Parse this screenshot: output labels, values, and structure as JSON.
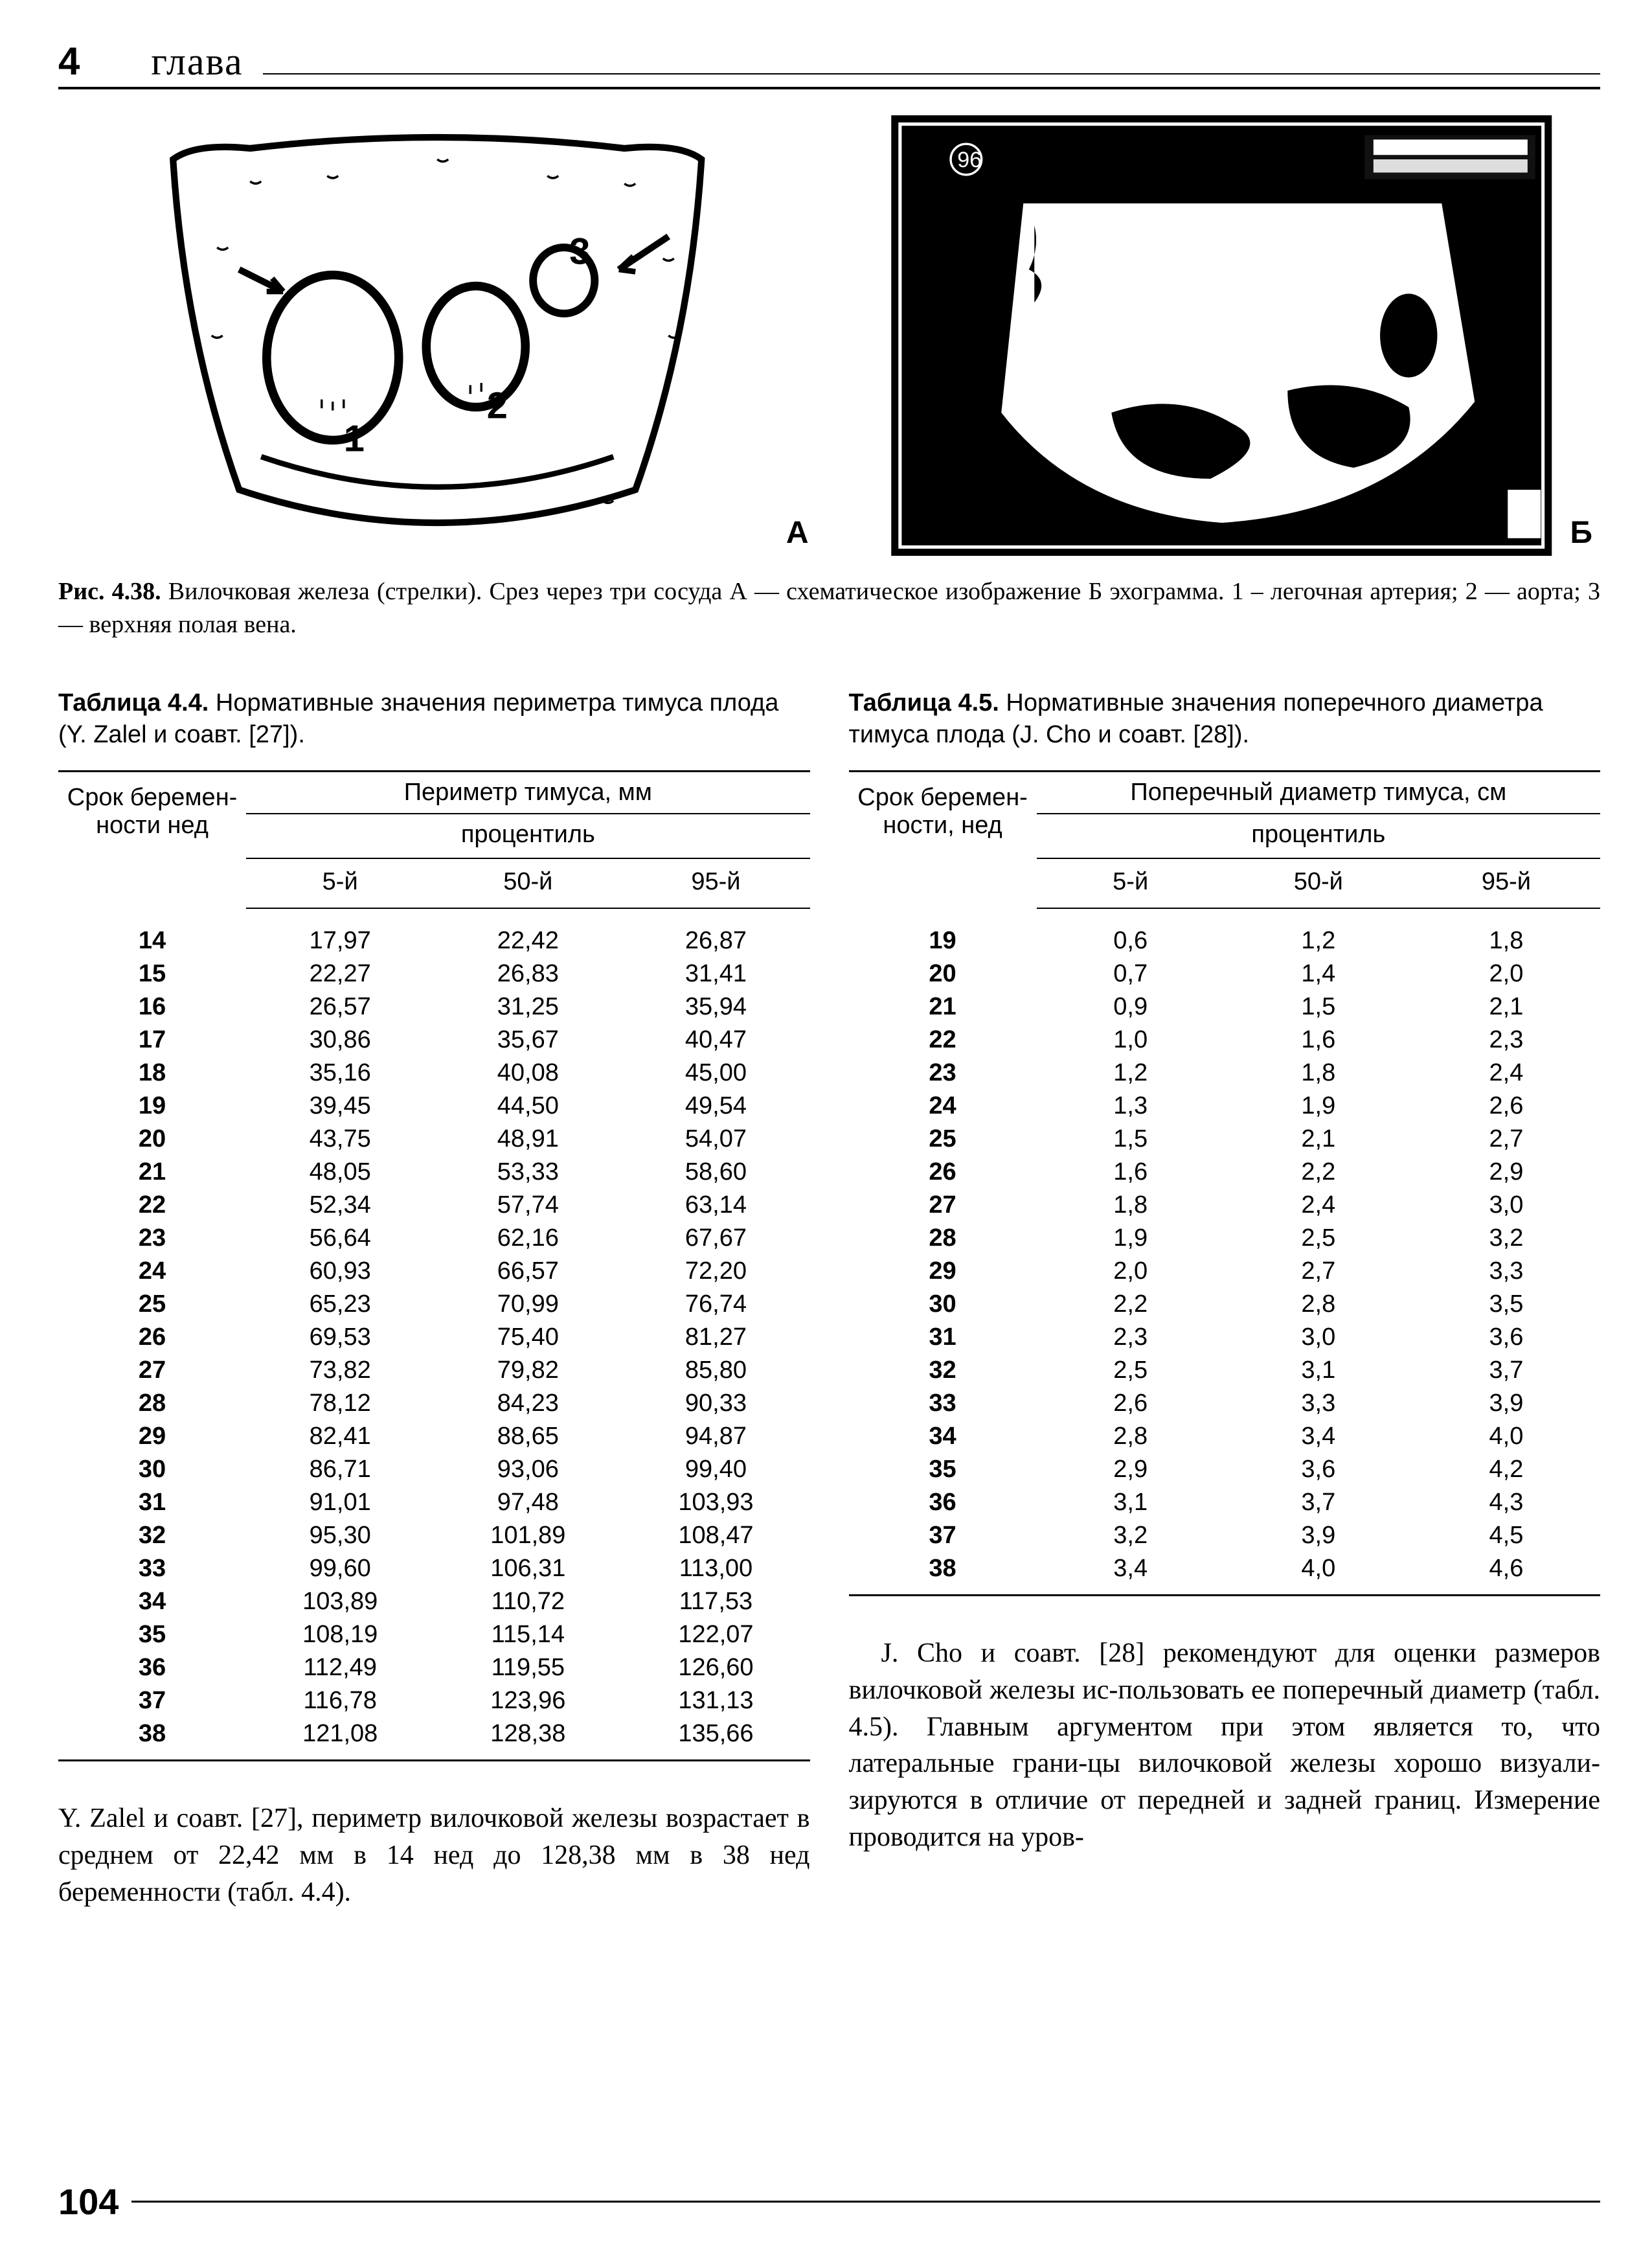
{
  "header": {
    "page_top": "4",
    "chapter": "глава"
  },
  "figure": {
    "label_a": "А",
    "label_b": "Б",
    "caption_bold": "Рис. 4.38.",
    "caption_text": " Вилочковая железа (стрелки). Срез через три сосуда  А — схематическое изображение  Б   эхограмма. 1 – легочная артерия; 2 — аорта; 3 — верхняя полая вена."
  },
  "table44": {
    "caption_bold": "Таблица 4.4.",
    "caption_text": " Нормативные значения периметра тимуса плода (Y. Zalel и соавт. [27]).",
    "rowhead": "Срок беремен-ности нед",
    "spanhead": "Периметр тимуса, мм",
    "subhead": "процентиль",
    "cols": [
      "5-й",
      "50-й",
      "95-й"
    ],
    "rows": [
      [
        "14",
        "17,97",
        "22,42",
        "26,87"
      ],
      [
        "15",
        "22,27",
        "26,83",
        "31,41"
      ],
      [
        "16",
        "26,57",
        "31,25",
        "35,94"
      ],
      [
        "17",
        "30,86",
        "35,67",
        "40,47"
      ],
      [
        "18",
        "35,16",
        "40,08",
        "45,00"
      ],
      [
        "19",
        "39,45",
        "44,50",
        "49,54"
      ],
      [
        "20",
        "43,75",
        "48,91",
        "54,07"
      ],
      [
        "21",
        "48,05",
        "53,33",
        "58,60"
      ],
      [
        "22",
        "52,34",
        "57,74",
        "63,14"
      ],
      [
        "23",
        "56,64",
        "62,16",
        "67,67"
      ],
      [
        "24",
        "60,93",
        "66,57",
        "72,20"
      ],
      [
        "25",
        "65,23",
        "70,99",
        "76,74"
      ],
      [
        "26",
        "69,53",
        "75,40",
        "81,27"
      ],
      [
        "27",
        "73,82",
        "79,82",
        "85,80"
      ],
      [
        "28",
        "78,12",
        "84,23",
        "90,33"
      ],
      [
        "29",
        "82,41",
        "88,65",
        "94,87"
      ],
      [
        "30",
        "86,71",
        "93,06",
        "99,40"
      ],
      [
        "31",
        "91,01",
        "97,48",
        "103,93"
      ],
      [
        "32",
        "95,30",
        "101,89",
        "108,47"
      ],
      [
        "33",
        "99,60",
        "106,31",
        "113,00"
      ],
      [
        "34",
        "103,89",
        "110,72",
        "117,53"
      ],
      [
        "35",
        "108,19",
        "115,14",
        "122,07"
      ],
      [
        "36",
        "112,49",
        "119,55",
        "126,60"
      ],
      [
        "37",
        "116,78",
        "123,96",
        "131,13"
      ],
      [
        "38",
        "121,08",
        "128,38",
        "135,66"
      ]
    ]
  },
  "table45": {
    "caption_bold": "Таблица 4.5.",
    "caption_text": " Нормативные значения поперечного диаметра тимуса плода (J. Cho и соавт. [28]).",
    "rowhead": "Срок беремен-ности, нед",
    "spanhead": "Поперечный диаметр тимуса, см",
    "subhead": "процентиль",
    "cols": [
      "5-й",
      "50-й",
      "95-й"
    ],
    "rows": [
      [
        "19",
        "0,6",
        "1,2",
        "1,8"
      ],
      [
        "20",
        "0,7",
        "1,4",
        "2,0"
      ],
      [
        "21",
        "0,9",
        "1,5",
        "2,1"
      ],
      [
        "22",
        "1,0",
        "1,6",
        "2,3"
      ],
      [
        "23",
        "1,2",
        "1,8",
        "2,4"
      ],
      [
        "24",
        "1,3",
        "1,9",
        "2,6"
      ],
      [
        "25",
        "1,5",
        "2,1",
        "2,7"
      ],
      [
        "26",
        "1,6",
        "2,2",
        "2,9"
      ],
      [
        "27",
        "1,8",
        "2,4",
        "3,0"
      ],
      [
        "28",
        "1,9",
        "2,5",
        "3,2"
      ],
      [
        "29",
        "2,0",
        "2,7",
        "3,3"
      ],
      [
        "30",
        "2,2",
        "2,8",
        "3,5"
      ],
      [
        "31",
        "2,3",
        "3,0",
        "3,6"
      ],
      [
        "32",
        "2,5",
        "3,1",
        "3,7"
      ],
      [
        "33",
        "2,6",
        "3,3",
        "3,9"
      ],
      [
        "34",
        "2,8",
        "3,4",
        "4,0"
      ],
      [
        "35",
        "2,9",
        "3,6",
        "4,2"
      ],
      [
        "36",
        "3,1",
        "3,7",
        "4,3"
      ],
      [
        "37",
        "3,2",
        "3,9",
        "4,5"
      ],
      [
        "38",
        "3,4",
        "4,0",
        "4,6"
      ]
    ]
  },
  "para_left": "Y. Zalel и соавт. [27], периметр вилочковой железы возрастает в среднем от 22,42 мм в 14 нед до 128,38 мм в 38 нед беременности (табл. 4.4).",
  "para_right": "J. Cho и соавт. [28] рекомендуют для оценки размеров вилочковой железы ис-пользовать ее поперечный диаметр (табл. 4.5). Главным аргументом при этом является то, что латеральные грани-цы вилочковой железы хорошо визуали-зируются в отличие от передней и задней границ. Измерение проводится на уров-",
  "footer": {
    "page_num": "104"
  }
}
